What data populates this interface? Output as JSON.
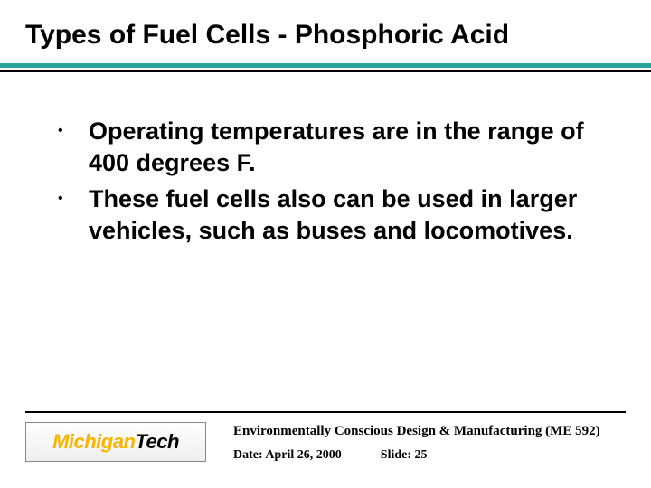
{
  "title": "Types of Fuel Cells - Phosphoric Acid",
  "accent_color": "#2aa39a",
  "bullets": [
    "Operating temperatures are in the range of 400 degrees F.",
    "These fuel cells also can be used in larger vehicles, such as buses and locomotives."
  ],
  "logo": {
    "part1": "Michigan",
    "part2": "Tech"
  },
  "footer": {
    "course": "Environmentally Conscious Design & Manufacturing (ME 592)",
    "date_label": "Date:",
    "date_value": "April 26, 2000",
    "slide_label": "Slide:",
    "slide_value": "25"
  }
}
